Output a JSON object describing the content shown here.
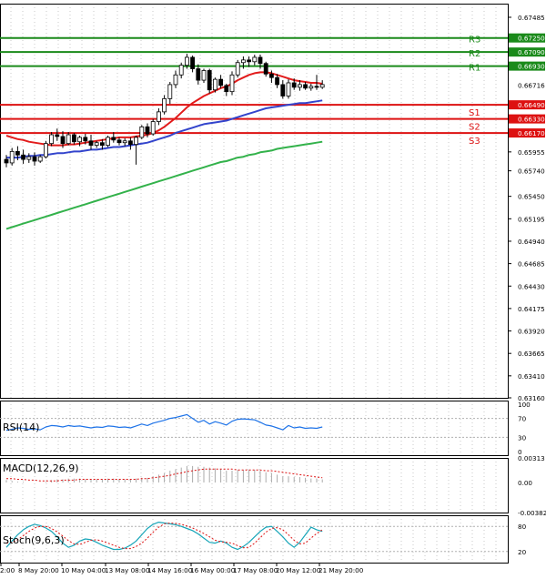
{
  "chart_data": {
    "type": "candlestick",
    "x_tick_labels": [
      "2:00",
      "8 May 20:00",
      "10 May 04:00",
      "13 May 08:00",
      "14 May 16:00",
      "16 May 00:00",
      "17 May 08:00",
      "20 May 12:00",
      "21 May 20:00"
    ],
    "main": {
      "y_ticks": [
        "0.67485",
        "0.67250",
        "0.67090",
        "0.66930",
        "0.66716",
        "0.66490",
        "0.66330",
        "0.66170",
        "0.65955",
        "0.65740",
        "0.65450",
        "0.65195",
        "0.64940",
        "0.64685",
        "0.64430",
        "0.64175",
        "0.63920",
        "0.63665",
        "0.63410",
        "0.63160"
      ],
      "ylim": [
        0.6316,
        0.6764
      ],
      "grid": true,
      "current_price": 0.66716,
      "levels": [
        {
          "name": "R3",
          "value": 0.6725,
          "tag": "0.67250",
          "color": "#1a8a1a"
        },
        {
          "name": "R2",
          "value": 0.6709,
          "tag": "0.67090",
          "color": "#1a8a1a"
        },
        {
          "name": "R1",
          "value": 0.6693,
          "tag": "0.66930",
          "color": "#1a8a1a"
        },
        {
          "name": "S1",
          "value": 0.6649,
          "tag": "0.66490",
          "color": "#dd1111"
        },
        {
          "name": "S2",
          "value": 0.6633,
          "tag": "0.66330",
          "color": "#dd1111"
        },
        {
          "name": "S3",
          "value": 0.6617,
          "tag": "0.66170",
          "color": "#dd1111"
        }
      ],
      "candles": [
        [
          0.6587,
          0.6592,
          0.6578,
          0.6583
        ],
        [
          0.6583,
          0.66,
          0.658,
          0.6596
        ],
        [
          0.6596,
          0.6602,
          0.6586,
          0.6592
        ],
        [
          0.6592,
          0.6598,
          0.6582,
          0.6587
        ],
        [
          0.6587,
          0.6594,
          0.6583,
          0.659
        ],
        [
          0.659,
          0.6595,
          0.658,
          0.6585
        ],
        [
          0.6585,
          0.6592,
          0.6583,
          0.659
        ],
        [
          0.659,
          0.6608,
          0.6588,
          0.6605
        ],
        [
          0.6605,
          0.6618,
          0.6602,
          0.6615
        ],
        [
          0.6615,
          0.6622,
          0.6608,
          0.6613
        ],
        [
          0.6613,
          0.6619,
          0.66,
          0.6605
        ],
        [
          0.6605,
          0.6618,
          0.6603,
          0.6615
        ],
        [
          0.6615,
          0.6617,
          0.6604,
          0.6607
        ],
        [
          0.6607,
          0.6614,
          0.6602,
          0.6612
        ],
        [
          0.6612,
          0.6616,
          0.6604,
          0.6608
        ],
        [
          0.6608,
          0.6615,
          0.6598,
          0.6603
        ],
        [
          0.6603,
          0.6608,
          0.66,
          0.6606
        ],
        [
          0.6606,
          0.661,
          0.6598,
          0.6603
        ],
        [
          0.6603,
          0.6614,
          0.6601,
          0.6612
        ],
        [
          0.6612,
          0.6618,
          0.6606,
          0.6609
        ],
        [
          0.6609,
          0.6612,
          0.6603,
          0.6606
        ],
        [
          0.6606,
          0.6611,
          0.6602,
          0.6608
        ],
        [
          0.6608,
          0.6612,
          0.6598,
          0.6604
        ],
        [
          0.6604,
          0.6614,
          0.6581,
          0.6612
        ],
        [
          0.6612,
          0.6626,
          0.661,
          0.6624
        ],
        [
          0.6624,
          0.6628,
          0.6612,
          0.6616
        ],
        [
          0.6616,
          0.6633,
          0.6614,
          0.663
        ],
        [
          0.663,
          0.6645,
          0.6626,
          0.6641
        ],
        [
          0.6641,
          0.666,
          0.6638,
          0.6656
        ],
        [
          0.6656,
          0.6675,
          0.665,
          0.6672
        ],
        [
          0.6672,
          0.6688,
          0.6668,
          0.6683
        ],
        [
          0.6683,
          0.6697,
          0.6679,
          0.6694
        ],
        [
          0.6694,
          0.6707,
          0.669,
          0.6703
        ],
        [
          0.6703,
          0.6705,
          0.6686,
          0.669
        ],
        [
          0.669,
          0.6695,
          0.6672,
          0.6677
        ],
        [
          0.6677,
          0.669,
          0.6674,
          0.6688
        ],
        [
          0.6688,
          0.669,
          0.6662,
          0.6666
        ],
        [
          0.6666,
          0.668,
          0.6663,
          0.6678
        ],
        [
          0.6678,
          0.6683,
          0.6668,
          0.6671
        ],
        [
          0.6671,
          0.6673,
          0.6659,
          0.6664
        ],
        [
          0.6664,
          0.6687,
          0.666,
          0.6683
        ],
        [
          0.6683,
          0.67,
          0.668,
          0.6697
        ],
        [
          0.6697,
          0.6704,
          0.669,
          0.67
        ],
        [
          0.67,
          0.6704,
          0.6692,
          0.6698
        ],
        [
          0.6698,
          0.6706,
          0.6694,
          0.6703
        ],
        [
          0.6703,
          0.6706,
          0.669,
          0.6696
        ],
        [
          0.6696,
          0.6698,
          0.6681,
          0.6684
        ],
        [
          0.6684,
          0.6688,
          0.6674,
          0.668
        ],
        [
          0.668,
          0.6684,
          0.6668,
          0.6672
        ],
        [
          0.6672,
          0.6677,
          0.6656,
          0.6659
        ],
        [
          0.6659,
          0.6678,
          0.6656,
          0.6674
        ],
        [
          0.6674,
          0.6679,
          0.6666,
          0.6669
        ],
        [
          0.6669,
          0.6677,
          0.6665,
          0.6672
        ],
        [
          0.6672,
          0.6675,
          0.6666,
          0.6668
        ],
        [
          0.6668,
          0.6673,
          0.6665,
          0.667
        ],
        [
          0.667,
          0.6683,
          0.6666,
          0.6669
        ],
        [
          0.6669,
          0.6677,
          0.6667,
          0.6672
        ]
      ],
      "ma_red": [
        0.6614,
        0.6612,
        0.661,
        0.6609,
        0.6607,
        0.6606,
        0.6605,
        0.6604,
        0.6603,
        0.6603,
        0.6603,
        0.6604,
        0.6604,
        0.6605,
        0.6606,
        0.6607,
        0.6608,
        0.6609,
        0.661,
        0.6611,
        0.6612,
        0.6612,
        0.6612,
        0.6613,
        0.6614,
        0.6615,
        0.6617,
        0.662,
        0.6624,
        0.6629,
        0.6634,
        0.664,
        0.6646,
        0.6651,
        0.6655,
        0.6659,
        0.6662,
        0.6665,
        0.6668,
        0.667,
        0.6673,
        0.6677,
        0.668,
        0.6683,
        0.6685,
        0.6686,
        0.6686,
        0.6685,
        0.6683,
        0.6681,
        0.6679,
        0.6677,
        0.6676,
        0.6675,
        0.6674,
        0.6674,
        0.6673
      ],
      "ma_blue": [
        0.6589,
        0.6589,
        0.6589,
        0.659,
        0.6591,
        0.6591,
        0.6592,
        0.6592,
        0.6593,
        0.6594,
        0.6594,
        0.6595,
        0.6596,
        0.6596,
        0.6597,
        0.6598,
        0.6598,
        0.6599,
        0.66,
        0.6601,
        0.6601,
        0.6602,
        0.6603,
        0.6604,
        0.6605,
        0.6606,
        0.6608,
        0.661,
        0.6612,
        0.6614,
        0.6617,
        0.6619,
        0.6621,
        0.6623,
        0.6625,
        0.6627,
        0.6628,
        0.6629,
        0.663,
        0.6631,
        0.6633,
        0.6635,
        0.6637,
        0.6639,
        0.6641,
        0.6643,
        0.6645,
        0.6646,
        0.6647,
        0.6648,
        0.6649,
        0.665,
        0.6651,
        0.6651,
        0.6652,
        0.6653,
        0.6654
      ],
      "ma_green": [
        0.6508,
        0.651,
        0.6512,
        0.6514,
        0.6516,
        0.6518,
        0.652,
        0.6522,
        0.6524,
        0.6526,
        0.6528,
        0.653,
        0.6532,
        0.6534,
        0.6536,
        0.6538,
        0.654,
        0.6542,
        0.6544,
        0.6546,
        0.6548,
        0.655,
        0.6552,
        0.6554,
        0.6556,
        0.6558,
        0.656,
        0.6562,
        0.6564,
        0.6566,
        0.6568,
        0.657,
        0.6572,
        0.6574,
        0.6576,
        0.6578,
        0.658,
        0.6582,
        0.6584,
        0.6585,
        0.6587,
        0.6589,
        0.659,
        0.6592,
        0.6593,
        0.6595,
        0.6596,
        0.6597,
        0.6599,
        0.66,
        0.6601,
        0.6602,
        0.6603,
        0.6604,
        0.6605,
        0.6606,
        0.6607
      ]
    },
    "rsi": {
      "label": "RSI(14)",
      "y_ticks": [
        "100",
        "70",
        "30",
        "0"
      ],
      "ylim": [
        0,
        100
      ],
      "values": [
        45,
        47,
        50,
        49,
        47,
        48,
        46,
        52,
        55,
        54,
        52,
        55,
        53,
        54,
        52,
        50,
        52,
        51,
        54,
        53,
        51,
        52,
        50,
        54,
        58,
        55,
        60,
        63,
        66,
        70,
        72,
        75,
        78,
        70,
        62,
        66,
        58,
        63,
        60,
        56,
        64,
        68,
        69,
        68,
        67,
        62,
        56,
        54,
        50,
        46,
        55,
        50,
        52,
        49,
        50,
        49,
        52
      ]
    },
    "macd": {
      "label": "MACD(12,26,9)",
      "y_ticks": [
        "0.00313",
        "0.00",
        "-0.003827"
      ],
      "ylim": [
        -0.003827,
        0.00313
      ],
      "histogram": [
        0.0003,
        0.0002,
        0.0001,
        0.0001,
        0.0,
        0.0,
        0.0,
        0.0001,
        0.0003,
        0.0004,
        0.0004,
        0.0005,
        0.0005,
        0.0005,
        0.0004,
        0.0004,
        0.0004,
        0.0004,
        0.0005,
        0.0005,
        0.0004,
        0.0004,
        0.0004,
        0.0005,
        0.0006,
        0.0006,
        0.0008,
        0.001,
        0.0012,
        0.0015,
        0.0017,
        0.0019,
        0.0021,
        0.0021,
        0.002,
        0.002,
        0.0019,
        0.0018,
        0.0017,
        0.0015,
        0.0015,
        0.0016,
        0.0016,
        0.0016,
        0.0016,
        0.0015,
        0.0013,
        0.0012,
        0.001,
        0.0008,
        0.0008,
        0.0007,
        0.0007,
        0.0006,
        0.0005,
        0.0005,
        0.0004
      ],
      "signal": [
        0.0005,
        0.0005,
        0.0004,
        0.0004,
        0.0003,
        0.0003,
        0.0002,
        0.0002,
        0.0002,
        0.0002,
        0.0003,
        0.0003,
        0.0003,
        0.0004,
        0.0004,
        0.0004,
        0.0004,
        0.0004,
        0.0004,
        0.0004,
        0.0004,
        0.0004,
        0.0004,
        0.0004,
        0.0005,
        0.0005,
        0.0006,
        0.0007,
        0.0008,
        0.0009,
        0.0011,
        0.0012,
        0.0014,
        0.0015,
        0.0016,
        0.0017,
        0.0017,
        0.0017,
        0.0017,
        0.0017,
        0.0017,
        0.0016,
        0.0016,
        0.0016,
        0.0016,
        0.0016,
        0.0015,
        0.0015,
        0.0014,
        0.0013,
        0.0012,
        0.0011,
        0.001,
        0.0009,
        0.0008,
        0.0007,
        0.0006
      ]
    },
    "stoch": {
      "label": "Stoch(9,6,3)",
      "y_ticks": [
        "80",
        "20"
      ],
      "ylim": [
        0,
        100
      ],
      "main_line": [
        30,
        45,
        60,
        72,
        80,
        85,
        82,
        76,
        68,
        55,
        40,
        30,
        35,
        45,
        50,
        48,
        42,
        35,
        30,
        25,
        25,
        28,
        35,
        45,
        60,
        75,
        85,
        90,
        88,
        86,
        84,
        80,
        75,
        70,
        62,
        52,
        42,
        40,
        45,
        40,
        30,
        25,
        32,
        42,
        55,
        68,
        78,
        80,
        68,
        55,
        40,
        30,
        42,
        60,
        78,
        72,
        68
      ],
      "signal_line": [
        40,
        42,
        48,
        58,
        68,
        76,
        80,
        80,
        75,
        67,
        57,
        46,
        38,
        37,
        42,
        47,
        48,
        45,
        40,
        35,
        30,
        27,
        27,
        32,
        40,
        52,
        66,
        78,
        86,
        88,
        87,
        85,
        81,
        76,
        70,
        63,
        55,
        47,
        43,
        42,
        40,
        34,
        29,
        30,
        40,
        53,
        66,
        75,
        77,
        72,
        60,
        47,
        38,
        40,
        52,
        63,
        72
      ]
    }
  }
}
